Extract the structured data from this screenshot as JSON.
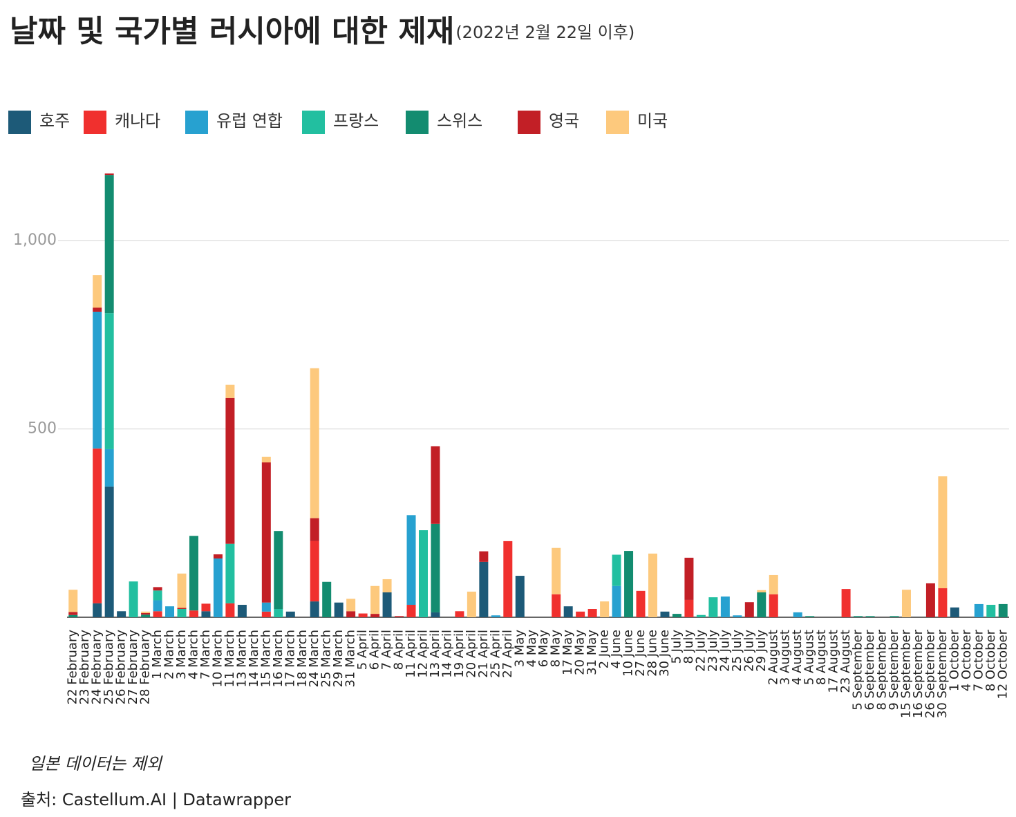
{
  "chart_data": {
    "type": "stacked_bar",
    "title": "날짜 및 국가별 러시아에 대한 제재",
    "subtitle": "(2022년 2월 22일 이후)",
    "note": "일본 데이터는 제외",
    "source": "출처: Castellum.AI | Datawrapper",
    "categories": [
      "22 February",
      "23 February",
      "24 February",
      "25 February",
      "26 February",
      "27 February",
      "28 February",
      "1 March",
      "2 March",
      "3 March",
      "4 March",
      "7 March",
      "10 March",
      "11 March",
      "13 March",
      "14 March",
      "15 March",
      "16 March",
      "17 March",
      "18 March",
      "24 March",
      "25 March",
      "29 March",
      "31 March",
      "5 April",
      "6 April",
      "7 April",
      "8 April",
      "11 April",
      "12 April",
      "13 April",
      "14 April",
      "19 April",
      "20 April",
      "21 April",
      "25 April",
      "27 April",
      "3 May",
      "4 May",
      "6 May",
      "8 May",
      "17 May",
      "20 May",
      "31 May",
      "2 June",
      "4 June",
      "10 June",
      "27 June",
      "28 June",
      "30 June",
      "5 July",
      "8 July",
      "22 July",
      "23 July",
      "24 July",
      "25 July",
      "26 July",
      "29 July",
      "2 August",
      "3 August",
      "4 August",
      "5 August",
      "8 August",
      "17 August",
      "23 August",
      "5 September",
      "6 September",
      "8 September",
      "9 September",
      "15 September",
      "16 September",
      "26 September",
      "30 September",
      "1 October",
      "4 October",
      "7 October",
      "8 October",
      "12 October"
    ],
    "series": [
      {
        "name": "호주",
        "color": "#1d5a78",
        "values": [
          0,
          0,
          37,
          347,
          16,
          0,
          0,
          0,
          0,
          0,
          0,
          16,
          0,
          0,
          33,
          0,
          0,
          0,
          15,
          0,
          42,
          0,
          39,
          0,
          0,
          0,
          66,
          0,
          0,
          0,
          13,
          0,
          0,
          0,
          147,
          0,
          0,
          110,
          0,
          0,
          0,
          29,
          0,
          0,
          0,
          0,
          0,
          0,
          0,
          15,
          0,
          0,
          0,
          0,
          0,
          0,
          0,
          0,
          0,
          0,
          0,
          0,
          0,
          0,
          0,
          0,
          0,
          0,
          0,
          0,
          0,
          0,
          0,
          26,
          0,
          0,
          0,
          0
        ]
      },
      {
        "name": "캐나다",
        "color": "#f0302e",
        "values": [
          0,
          0,
          411,
          0,
          0,
          0,
          0,
          16,
          0,
          0,
          18,
          20,
          0,
          37,
          0,
          0,
          15,
          0,
          0,
          0,
          160,
          0,
          0,
          0,
          10,
          0,
          0,
          0,
          33,
          0,
          0,
          0,
          16,
          0,
          0,
          0,
          202,
          0,
          0,
          0,
          61,
          0,
          15,
          22,
          0,
          0,
          0,
          70,
          0,
          0,
          0,
          46,
          0,
          0,
          0,
          0,
          0,
          0,
          61,
          0,
          0,
          0,
          0,
          0,
          75,
          0,
          0,
          0,
          0,
          0,
          0,
          0,
          77,
          0,
          0,
          0,
          0,
          0
        ]
      },
      {
        "name": "유럽 연합",
        "color": "#27a1d0",
        "values": [
          0,
          0,
          363,
          99,
          0,
          0,
          0,
          29,
          29,
          0,
          0,
          0,
          156,
          0,
          0,
          0,
          24,
          0,
          0,
          0,
          0,
          0,
          0,
          0,
          0,
          0,
          0,
          0,
          238,
          0,
          0,
          0,
          0,
          0,
          0,
          5,
          0,
          0,
          0,
          0,
          0,
          0,
          0,
          0,
          0,
          83,
          0,
          0,
          0,
          0,
          0,
          0,
          0,
          0,
          55,
          5,
          0,
          0,
          0,
          0,
          13,
          0,
          0,
          0,
          0,
          0,
          0,
          0,
          0,
          0,
          0,
          0,
          0,
          0,
          0,
          35,
          0,
          0
        ]
      },
      {
        "name": "프랑스",
        "color": "#22bfa0",
        "values": [
          0,
          0,
          0,
          361,
          0,
          95,
          0,
          26,
          0,
          22,
          0,
          0,
          0,
          158,
          0,
          0,
          0,
          22,
          0,
          0,
          0,
          0,
          0,
          0,
          0,
          0,
          0,
          0,
          0,
          231,
          0,
          0,
          0,
          0,
          0,
          0,
          0,
          0,
          0,
          0,
          0,
          0,
          0,
          0,
          0,
          83,
          0,
          0,
          0,
          0,
          0,
          0,
          6,
          53,
          0,
          0,
          0,
          0,
          0,
          0,
          0,
          0,
          0,
          0,
          0,
          0,
          0,
          0,
          0,
          0,
          0,
          0,
          0,
          0,
          0,
          0,
          33,
          0
        ]
      },
      {
        "name": "스위스",
        "color": "#138c70",
        "values": [
          6,
          0,
          0,
          367,
          0,
          0,
          7,
          0,
          0,
          0,
          198,
          0,
          0,
          0,
          0,
          0,
          0,
          207,
          0,
          0,
          0,
          94,
          0,
          0,
          0,
          0,
          0,
          0,
          0,
          0,
          235,
          0,
          0,
          0,
          0,
          0,
          0,
          0,
          0,
          0,
          0,
          0,
          0,
          0,
          0,
          0,
          176,
          0,
          0,
          0,
          9,
          0,
          0,
          0,
          0,
          0,
          0,
          66,
          0,
          0,
          0,
          3,
          0,
          0,
          0,
          3,
          3,
          0,
          3,
          0,
          0,
          0,
          0,
          0,
          0,
          0,
          0,
          35
        ]
      },
      {
        "name": "영국",
        "color": "#c21f26",
        "values": [
          8,
          0,
          11,
          4,
          0,
          0,
          4,
          9,
          0,
          3,
          0,
          0,
          11,
          387,
          0,
          0,
          372,
          0,
          0,
          0,
          61,
          0,
          0,
          16,
          0,
          9,
          0,
          3,
          0,
          0,
          206,
          0,
          0,
          0,
          28,
          0,
          0,
          0,
          0,
          0,
          0,
          0,
          0,
          0,
          0,
          0,
          0,
          0,
          0,
          0,
          0,
          112,
          0,
          0,
          0,
          0,
          40,
          0,
          0,
          0,
          0,
          0,
          0,
          0,
          0,
          0,
          0,
          0,
          0,
          0,
          0,
          90,
          0,
          0,
          0,
          0,
          0,
          0
        ]
      },
      {
        "name": "미국",
        "color": "#fdc97d",
        "values": [
          59,
          0,
          86,
          0,
          0,
          0,
          4,
          0,
          0,
          91,
          0,
          0,
          0,
          35,
          0,
          0,
          15,
          0,
          0,
          0,
          398,
          0,
          0,
          33,
          0,
          74,
          35,
          0,
          0,
          0,
          0,
          0,
          0,
          68,
          0,
          0,
          0,
          0,
          0,
          0,
          123,
          0,
          0,
          0,
          42,
          0,
          0,
          0,
          169,
          0,
          0,
          0,
          0,
          0,
          0,
          0,
          0,
          6,
          51,
          0,
          0,
          0,
          0,
          0,
          0,
          0,
          0,
          0,
          0,
          73,
          0,
          0,
          297,
          0,
          0,
          0,
          0,
          0
        ]
      }
    ],
    "ylim": [
      0,
      1210
    ],
    "yticks": [
      500,
      {
        "value": 1000,
        "label": "1,000"
      }
    ],
    "grid": true
  }
}
